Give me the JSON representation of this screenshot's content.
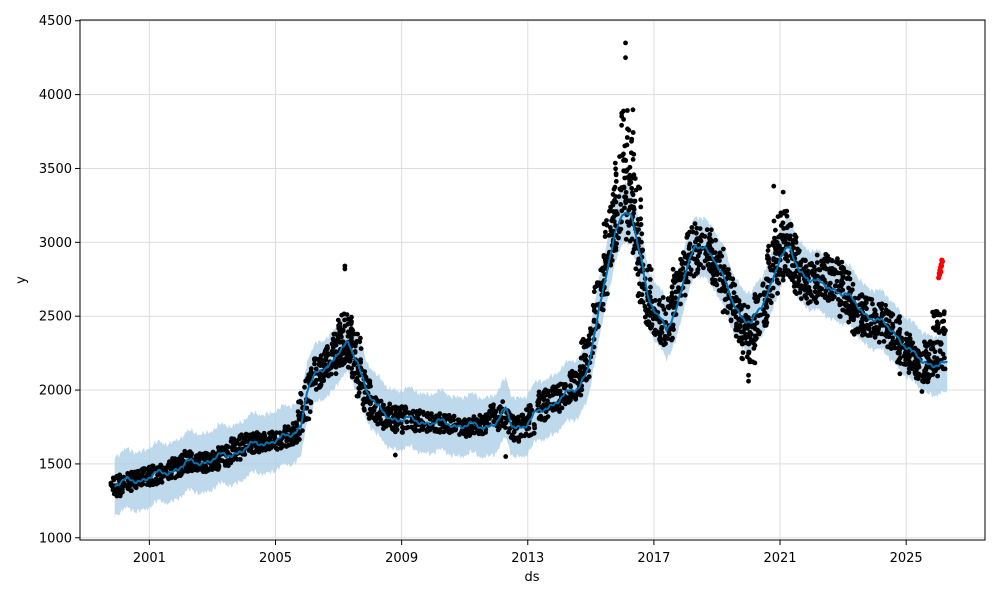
{
  "chart_data": {
    "type": "line",
    "xlabel": "ds",
    "ylabel": "y",
    "xlim": [
      1998.8,
      2027.5
    ],
    "ylim": [
      985,
      4505
    ],
    "grid": true,
    "x_ticks": [
      2001,
      2005,
      2009,
      2013,
      2017,
      2021,
      2025
    ],
    "x_tick_labels": [
      "2001",
      "2005",
      "2009",
      "2013",
      "2017",
      "2021",
      "2025"
    ],
    "y_ticks": [
      1000,
      1500,
      2000,
      2500,
      3000,
      3500,
      4000,
      4500
    ],
    "y_tick_labels": [
      "1000",
      "1500",
      "2000",
      "2500",
      "3000",
      "3500",
      "4000",
      "4500"
    ],
    "colors": {
      "observed": "#000000",
      "forecast": "#0072B2",
      "interval": "#a8cce6",
      "recent": "#ff0000"
    },
    "interval_halfwidth": 200,
    "forecast_trend": [
      [
        1999.9,
        1360
      ],
      [
        2000.3,
        1380
      ],
      [
        2000.8,
        1400
      ],
      [
        2001.5,
        1440
      ],
      [
        2002.2,
        1500
      ],
      [
        2002.8,
        1520
      ],
      [
        2003.5,
        1560
      ],
      [
        2004.0,
        1600
      ],
      [
        2004.5,
        1640
      ],
      [
        2005.0,
        1660
      ],
      [
        2005.4,
        1680
      ],
      [
        2005.8,
        1760
      ],
      [
        2006.0,
        2000
      ],
      [
        2006.3,
        2100
      ],
      [
        2006.7,
        2180
      ],
      [
        2007.0,
        2260
      ],
      [
        2007.3,
        2300
      ],
      [
        2007.6,
        2200
      ],
      [
        2007.9,
        2000
      ],
      [
        2008.2,
        1880
      ],
      [
        2008.6,
        1820
      ],
      [
        2009.0,
        1800
      ],
      [
        2009.5,
        1790
      ],
      [
        2010.0,
        1780
      ],
      [
        2010.5,
        1770
      ],
      [
        2011.0,
        1760
      ],
      [
        2011.5,
        1750
      ],
      [
        2012.0,
        1780
      ],
      [
        2012.3,
        1860
      ],
      [
        2012.5,
        1760
      ],
      [
        2012.9,
        1760
      ],
      [
        2013.3,
        1840
      ],
      [
        2013.7,
        1900
      ],
      [
        2014.2,
        1960
      ],
      [
        2014.6,
        2020
      ],
      [
        2014.9,
        2150
      ],
      [
        2015.2,
        2450
      ],
      [
        2015.5,
        2800
      ],
      [
        2015.8,
        3100
      ],
      [
        2016.0,
        3200
      ],
      [
        2016.3,
        3150
      ],
      [
        2016.6,
        2900
      ],
      [
        2016.8,
        2650
      ],
      [
        2017.1,
        2500
      ],
      [
        2017.4,
        2400
      ],
      [
        2017.7,
        2550
      ],
      [
        2018.0,
        2800
      ],
      [
        2018.3,
        2950
      ],
      [
        2018.6,
        2980
      ],
      [
        2018.9,
        2900
      ],
      [
        2019.2,
        2750
      ],
      [
        2019.5,
        2600
      ],
      [
        2019.8,
        2500
      ],
      [
        2020.1,
        2450
      ],
      [
        2020.4,
        2550
      ],
      [
        2020.7,
        2720
      ],
      [
        2021.0,
        2900
      ],
      [
        2021.3,
        2950
      ],
      [
        2021.6,
        2820
      ],
      [
        2021.9,
        2760
      ],
      [
        2022.2,
        2720
      ],
      [
        2022.5,
        2700
      ],
      [
        2022.8,
        2680
      ],
      [
        2023.1,
        2640
      ],
      [
        2023.4,
        2580
      ],
      [
        2023.7,
        2520
      ],
      [
        2024.0,
        2480
      ],
      [
        2024.3,
        2440
      ],
      [
        2024.6,
        2400
      ],
      [
        2024.9,
        2320
      ],
      [
        2025.2,
        2240
      ],
      [
        2025.5,
        2200
      ],
      [
        2025.8,
        2180
      ],
      [
        2026.1,
        2170
      ],
      [
        2026.3,
        2160
      ]
    ],
    "observed_clusters": [
      [
        2000.0,
        1340,
        90
      ],
      [
        2000.5,
        1380,
        80
      ],
      [
        2000.9,
        1420,
        80
      ],
      [
        2001.3,
        1430,
        80
      ],
      [
        2001.8,
        1480,
        90
      ],
      [
        2002.2,
        1540,
        90
      ],
      [
        2002.6,
        1500,
        80
      ],
      [
        2003.0,
        1510,
        80
      ],
      [
        2003.4,
        1560,
        90
      ],
      [
        2003.8,
        1640,
        110
      ],
      [
        2004.2,
        1660,
        90
      ],
      [
        2004.6,
        1650,
        80
      ],
      [
        2005.0,
        1660,
        80
      ],
      [
        2005.5,
        1700,
        90
      ],
      [
        2005.9,
        1880,
        200
      ],
      [
        2006.3,
        2150,
        150
      ],
      [
        2006.7,
        2220,
        150
      ],
      [
        2007.0,
        2300,
        150
      ],
      [
        2007.2,
        2450,
        200
      ],
      [
        2007.5,
        2250,
        220
      ],
      [
        2007.8,
        1950,
        180
      ],
      [
        2008.2,
        1800,
        130
      ],
      [
        2008.6,
        1820,
        110
      ],
      [
        2009.0,
        1800,
        110
      ],
      [
        2009.5,
        1790,
        90
      ],
      [
        2010.0,
        1780,
        80
      ],
      [
        2010.5,
        1760,
        80
      ],
      [
        2011.0,
        1740,
        80
      ],
      [
        2011.5,
        1770,
        90
      ],
      [
        2012.0,
        1850,
        120
      ],
      [
        2012.5,
        1720,
        110
      ],
      [
        2013.0,
        1800,
        130
      ],
      [
        2013.5,
        1920,
        130
      ],
      [
        2014.0,
        1960,
        120
      ],
      [
        2014.5,
        2060,
        130
      ],
      [
        2014.9,
        2300,
        200
      ],
      [
        2015.3,
        2700,
        220
      ],
      [
        2015.6,
        3150,
        260
      ],
      [
        2015.9,
        3400,
        380
      ],
      [
        2016.15,
        3850,
        520
      ],
      [
        2016.4,
        3200,
        400
      ],
      [
        2016.7,
        2650,
        280
      ],
      [
        2017.0,
        2450,
        180
      ],
      [
        2017.4,
        2500,
        200
      ],
      [
        2017.8,
        2800,
        220
      ],
      [
        2018.2,
        2950,
        220
      ],
      [
        2018.6,
        2970,
        200
      ],
      [
        2019.0,
        2850,
        200
      ],
      [
        2019.4,
        2650,
        220
      ],
      [
        2019.8,
        2400,
        180
      ],
      [
        2020.0,
        2200,
        200
      ],
      [
        2020.4,
        2550,
        220
      ],
      [
        2020.8,
        2850,
        260
      ],
      [
        2021.0,
        3050,
        300
      ],
      [
        2021.3,
        2950,
        250
      ],
      [
        2021.6,
        2750,
        200
      ],
      [
        2022.0,
        2700,
        180
      ],
      [
        2022.4,
        2820,
        200
      ],
      [
        2022.8,
        2820,
        180
      ],
      [
        2023.1,
        2650,
        200
      ],
      [
        2023.4,
        2450,
        180
      ],
      [
        2023.8,
        2480,
        170
      ],
      [
        2024.2,
        2450,
        170
      ],
      [
        2024.6,
        2380,
        170
      ],
      [
        2024.9,
        2250,
        150
      ],
      [
        2025.2,
        2200,
        150
      ],
      [
        2025.5,
        2120,
        130
      ],
      [
        2025.8,
        2250,
        150
      ],
      [
        2026.05,
        2500,
        250
      ]
    ],
    "observed_outliers": [
      [
        2007.2,
        2840
      ],
      [
        2007.2,
        2820
      ],
      [
        2008.8,
        1560
      ],
      [
        2012.3,
        1550
      ],
      [
        2016.1,
        4350
      ],
      [
        2016.1,
        4250
      ],
      [
        2020.0,
        2060
      ],
      [
        2020.0,
        2100
      ],
      [
        2020.8,
        3380
      ],
      [
        2021.1,
        3340
      ],
      [
        2024.8,
        2110
      ],
      [
        2025.5,
        1990
      ]
    ],
    "recent_points": [
      [
        2026.03,
        2760
      ],
      [
        2026.05,
        2790
      ],
      [
        2026.07,
        2810
      ],
      [
        2026.09,
        2830
      ],
      [
        2026.11,
        2850
      ],
      [
        2026.13,
        2880
      ],
      [
        2026.15,
        2870
      ],
      [
        2026.1,
        2800
      ],
      [
        2026.12,
        2840
      ],
      [
        2026.06,
        2780
      ]
    ]
  }
}
